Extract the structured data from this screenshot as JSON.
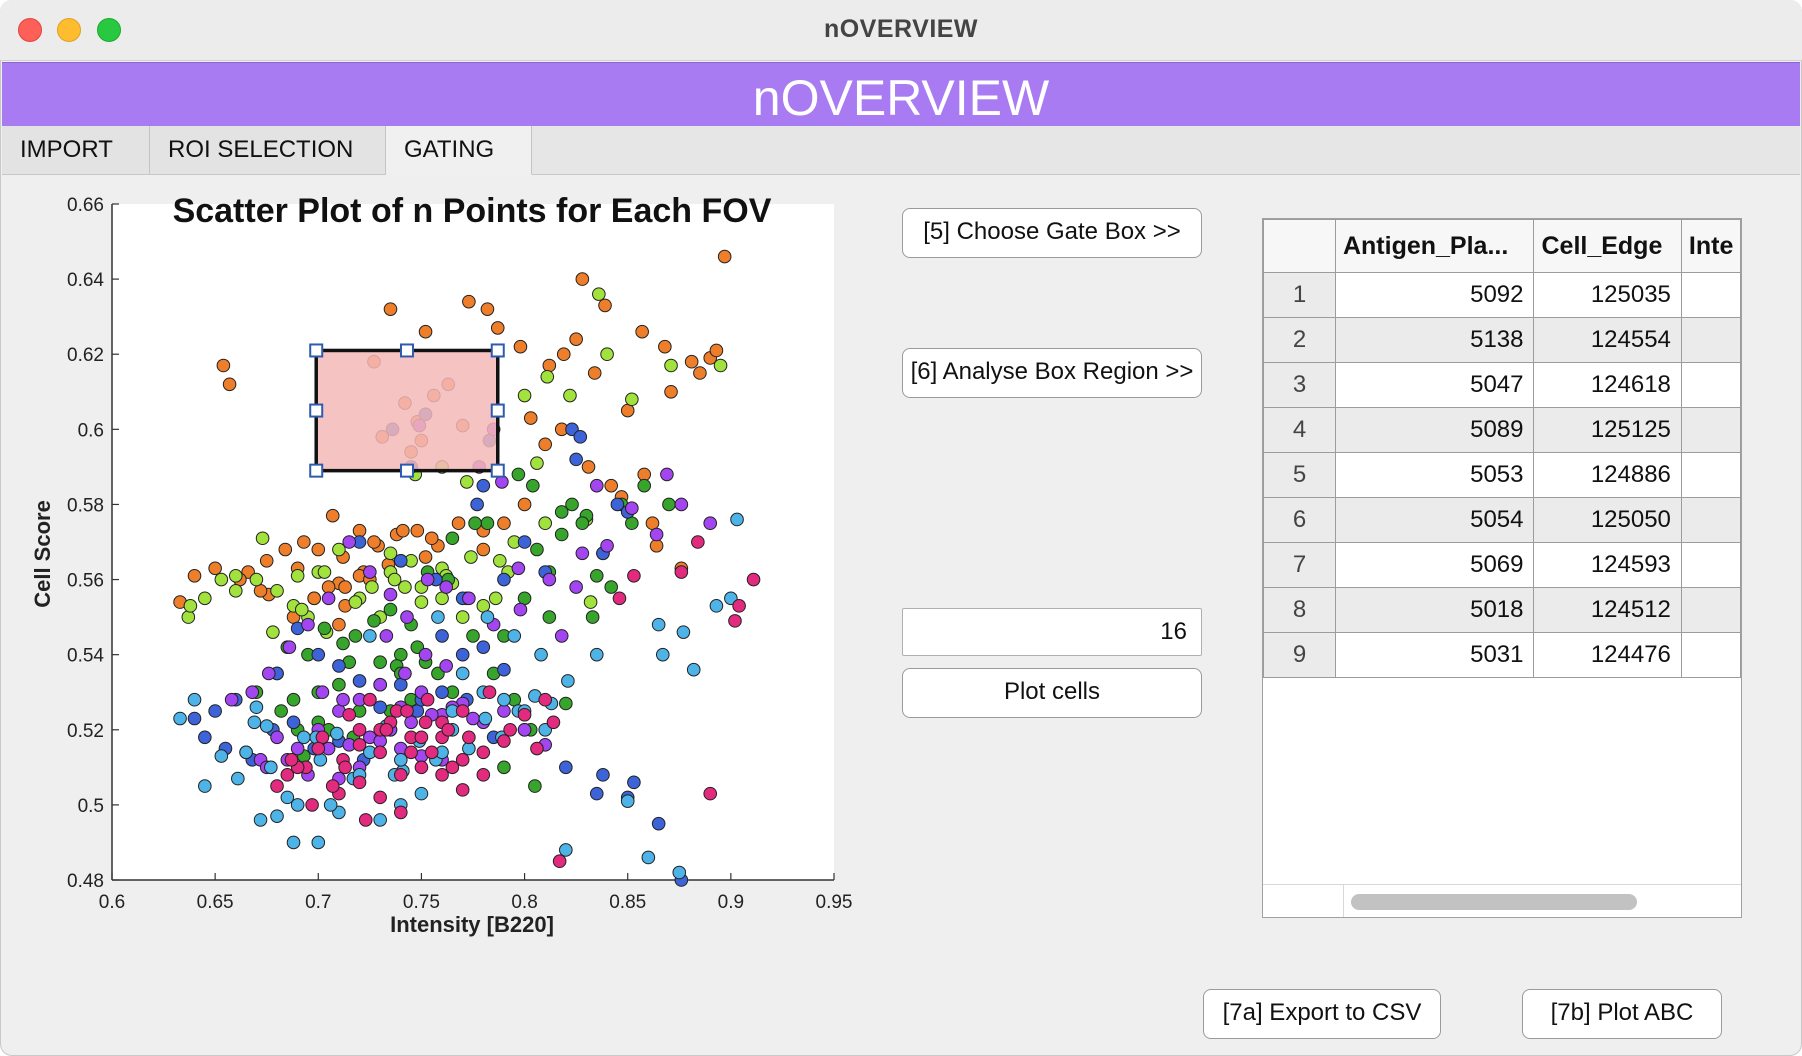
{
  "window": {
    "title": "nOVERVIEW"
  },
  "banner": {
    "title": "nOVERVIEW",
    "color": "#a97bf2"
  },
  "tabs": [
    {
      "label": "IMPORT",
      "active": false
    },
    {
      "label": "ROI SELECTION",
      "active": false
    },
    {
      "label": "GATING",
      "active": true
    }
  ],
  "buttons": {
    "choose_gate": "[5] Choose Gate Box >>",
    "analyse_box": "[6] Analyse Box Region >>",
    "plot_cells": "Plot cells",
    "export_csv": "[7a] Export to CSV",
    "plot_abc": "[7b] Plot ABC"
  },
  "n_points_field": {
    "value": "16"
  },
  "table": {
    "columns": [
      "",
      "Antigen_Pla...",
      "Cell_Edge",
      "Inte"
    ],
    "rows": [
      [
        "1",
        "5092",
        "125035"
      ],
      [
        "2",
        "5138",
        "124554"
      ],
      [
        "3",
        "5047",
        "124618"
      ],
      [
        "4",
        "5089",
        "125125"
      ],
      [
        "5",
        "5053",
        "124886"
      ],
      [
        "6",
        "5054",
        "125050"
      ],
      [
        "7",
        "5069",
        "124593"
      ],
      [
        "8",
        "5018",
        "124512"
      ],
      [
        "9",
        "5031",
        "124476"
      ]
    ]
  },
  "chart_data": {
    "type": "scatter",
    "title": "Scatter Plot of n Points for Each FOV",
    "xlabel": "Intensity [B220]",
    "ylabel": "Cell Score",
    "xlim": [
      0.6,
      0.95
    ],
    "ylim": [
      0.48,
      0.66
    ],
    "xticks": [
      "0.6",
      "0.65",
      "0.7",
      "0.75",
      "0.8",
      "0.85",
      "0.9",
      "0.95"
    ],
    "yticks": [
      "0.48",
      "0.5",
      "0.52",
      "0.54",
      "0.56",
      "0.58",
      "0.6",
      "0.62",
      "0.64",
      "0.66"
    ],
    "grid": false,
    "legend": "none",
    "gate_box": {
      "x0": 0.699,
      "x1": 0.787,
      "y0": 0.589,
      "y1": 0.621,
      "color": "#f4b8b8"
    },
    "series": [
      {
        "color": "#ee7e2a",
        "x": [
          0.654,
          0.657,
          0.735,
          0.752,
          0.773,
          0.782,
          0.787,
          0.798,
          0.828,
          0.839,
          0.85,
          0.857,
          0.868,
          0.871,
          0.881,
          0.885,
          0.89,
          0.893,
          0.897,
          0.812,
          0.819,
          0.825,
          0.834,
          0.803,
          0.748,
          0.742,
          0.763,
          0.756,
          0.727,
          0.745,
          0.731,
          0.75,
          0.77,
          0.707,
          0.72,
          0.78,
          0.693,
          0.684,
          0.675,
          0.666,
          0.7,
          0.712,
          0.738,
          0.758,
          0.768,
          0.71,
          0.698,
          0.688,
          0.676,
          0.705,
          0.722,
          0.734,
          0.752,
          0.662,
          0.672,
          0.69,
          0.713,
          0.729,
          0.741,
          0.755,
          0.78,
          0.79,
          0.842,
          0.858,
          0.862,
          0.831,
          0.847,
          0.81,
          0.818,
          0.864,
          0.876,
          0.8,
          0.65,
          0.64,
          0.633,
          0.72,
          0.727,
          0.74,
          0.748,
          0.71,
          0.698,
          0.713,
          0.725
        ],
        "y": [
          0.617,
          0.612,
          0.632,
          0.626,
          0.634,
          0.632,
          0.627,
          0.622,
          0.64,
          0.633,
          0.605,
          0.626,
          0.622,
          0.61,
          0.618,
          0.615,
          0.619,
          0.621,
          0.646,
          0.617,
          0.62,
          0.624,
          0.615,
          0.603,
          0.602,
          0.607,
          0.612,
          0.609,
          0.618,
          0.594,
          0.598,
          0.597,
          0.601,
          0.577,
          0.573,
          0.573,
          0.57,
          0.568,
          0.565,
          0.562,
          0.568,
          0.566,
          0.572,
          0.569,
          0.575,
          0.559,
          0.555,
          0.55,
          0.556,
          0.558,
          0.562,
          0.564,
          0.566,
          0.56,
          0.557,
          0.563,
          0.553,
          0.569,
          0.573,
          0.571,
          0.568,
          0.575,
          0.585,
          0.588,
          0.575,
          0.59,
          0.582,
          0.596,
          0.6,
          0.569,
          0.563,
          0.58,
          0.563,
          0.561,
          0.554,
          0.561,
          0.57,
          0.565,
          0.573,
          0.548,
          0.555,
          0.558,
          0.56
        ]
      },
      {
        "color": "#a2e23c",
        "x": [
          0.836,
          0.84,
          0.852,
          0.871,
          0.895,
          0.822,
          0.811,
          0.8,
          0.806,
          0.76,
          0.772,
          0.747,
          0.735,
          0.745,
          0.76,
          0.735,
          0.742,
          0.75,
          0.765,
          0.788,
          0.795,
          0.81,
          0.83,
          0.838,
          0.792,
          0.78,
          0.77,
          0.76,
          0.7,
          0.69,
          0.67,
          0.66,
          0.653,
          0.68,
          0.688,
          0.695,
          0.703,
          0.71,
          0.72,
          0.73,
          0.66,
          0.673,
          0.645,
          0.637,
          0.638,
          0.678,
          0.692,
          0.704,
          0.718,
          0.726,
          0.737,
          0.75,
          0.762,
          0.774,
          0.786,
          0.832
        ],
        "y": [
          0.636,
          0.62,
          0.608,
          0.617,
          0.617,
          0.609,
          0.614,
          0.609,
          0.591,
          0.59,
          0.586,
          0.588,
          0.567,
          0.565,
          0.563,
          0.562,
          0.558,
          0.554,
          0.559,
          0.565,
          0.57,
          0.575,
          0.576,
          0.567,
          0.562,
          0.553,
          0.55,
          0.555,
          0.562,
          0.561,
          0.56,
          0.561,
          0.56,
          0.557,
          0.553,
          0.55,
          0.562,
          0.568,
          0.555,
          0.55,
          0.557,
          0.571,
          0.555,
          0.55,
          0.553,
          0.546,
          0.552,
          0.546,
          0.554,
          0.558,
          0.56,
          0.558,
          0.561,
          0.566,
          0.555,
          0.554
        ]
      },
      {
        "color": "#37a42b",
        "x": [
          0.87,
          0.858,
          0.847,
          0.83,
          0.818,
          0.804,
          0.797,
          0.782,
          0.776,
          0.765,
          0.806,
          0.812,
          0.818,
          0.823,
          0.828,
          0.835,
          0.842,
          0.852,
          0.833,
          0.812,
          0.8,
          0.79,
          0.772,
          0.763,
          0.753,
          0.745,
          0.735,
          0.727,
          0.718,
          0.712,
          0.703,
          0.695,
          0.685,
          0.67,
          0.68,
          0.688,
          0.7,
          0.71,
          0.72,
          0.73,
          0.74,
          0.752,
          0.765,
          0.775,
          0.785,
          0.795,
          0.803,
          0.682,
          0.69,
          0.7,
          0.738,
          0.748,
          0.758,
          0.725,
          0.73,
          0.735,
          0.74,
          0.745,
          0.715,
          0.705,
          0.693,
          0.717,
          0.79,
          0.805,
          0.82
        ],
        "y": [
          0.58,
          0.585,
          0.58,
          0.577,
          0.578,
          0.585,
          0.588,
          0.575,
          0.575,
          0.571,
          0.568,
          0.562,
          0.572,
          0.58,
          0.575,
          0.561,
          0.558,
          0.575,
          0.55,
          0.55,
          0.555,
          0.545,
          0.555,
          0.56,
          0.562,
          0.548,
          0.552,
          0.549,
          0.545,
          0.543,
          0.547,
          0.54,
          0.542,
          0.53,
          0.535,
          0.528,
          0.53,
          0.532,
          0.525,
          0.538,
          0.54,
          0.538,
          0.53,
          0.545,
          0.535,
          0.528,
          0.52,
          0.525,
          0.52,
          0.522,
          0.537,
          0.542,
          0.535,
          0.528,
          0.532,
          0.525,
          0.535,
          0.528,
          0.538,
          0.52,
          0.513,
          0.518,
          0.51,
          0.505,
          0.527
        ]
      },
      {
        "color": "#3c63d8",
        "x": [
          0.745,
          0.736,
          0.752,
          0.783,
          0.78,
          0.777,
          0.823,
          0.825,
          0.827,
          0.845,
          0.85,
          0.838,
          0.81,
          0.8,
          0.79,
          0.77,
          0.757,
          0.74,
          0.72,
          0.7,
          0.69,
          0.68,
          0.66,
          0.65,
          0.64,
          0.645,
          0.655,
          0.668,
          0.678,
          0.688,
          0.698,
          0.71,
          0.722,
          0.735,
          0.748,
          0.76,
          0.772,
          0.785,
          0.8,
          0.82,
          0.835,
          0.85,
          0.865,
          0.876,
          0.71,
          0.72,
          0.73,
          0.74,
          0.75,
          0.76,
          0.77,
          0.78,
          0.79,
          0.838,
          0.853
        ],
        "y": [
          0.59,
          0.6,
          0.604,
          0.597,
          0.585,
          0.58,
          0.6,
          0.592,
          0.598,
          0.58,
          0.578,
          0.567,
          0.562,
          0.57,
          0.56,
          0.555,
          0.56,
          0.565,
          0.57,
          0.54,
          0.547,
          0.535,
          0.528,
          0.525,
          0.523,
          0.518,
          0.515,
          0.512,
          0.52,
          0.522,
          0.515,
          0.517,
          0.512,
          0.52,
          0.525,
          0.53,
          0.528,
          0.518,
          0.52,
          0.51,
          0.503,
          0.502,
          0.495,
          0.48,
          0.537,
          0.533,
          0.526,
          0.532,
          0.528,
          0.545,
          0.54,
          0.542,
          0.536,
          0.508,
          0.506
        ]
      },
      {
        "color": "#a346f2",
        "x": [
          0.785,
          0.778,
          0.749,
          0.789,
          0.835,
          0.869,
          0.852,
          0.89,
          0.864,
          0.84,
          0.876,
          0.828,
          0.797,
          0.812,
          0.825,
          0.818,
          0.798,
          0.785,
          0.773,
          0.762,
          0.753,
          0.743,
          0.735,
          0.725,
          0.715,
          0.705,
          0.695,
          0.686,
          0.676,
          0.668,
          0.658,
          0.71,
          0.72,
          0.73,
          0.74,
          0.75,
          0.76,
          0.77,
          0.78,
          0.79,
          0.8,
          0.81,
          0.7,
          0.69,
          0.68,
          0.672,
          0.665,
          0.675,
          0.685,
          0.695,
          0.705,
          0.715,
          0.725,
          0.735,
          0.745,
          0.755,
          0.765,
          0.775,
          0.73,
          0.74,
          0.75,
          0.72,
          0.71,
          0.76,
          0.702,
          0.712,
          0.742,
          0.752,
          0.762,
          0.733
        ],
        "y": [
          0.6,
          0.59,
          0.601,
          0.586,
          0.585,
          0.588,
          0.579,
          0.575,
          0.572,
          0.569,
          0.58,
          0.567,
          0.563,
          0.56,
          0.558,
          0.545,
          0.552,
          0.548,
          0.555,
          0.558,
          0.56,
          0.55,
          0.556,
          0.562,
          0.57,
          0.555,
          0.548,
          0.542,
          0.535,
          0.53,
          0.528,
          0.525,
          0.528,
          0.532,
          0.526,
          0.53,
          0.524,
          0.527,
          0.522,
          0.525,
          0.52,
          0.516,
          0.52,
          0.515,
          0.518,
          0.512,
          0.514,
          0.51,
          0.512,
          0.508,
          0.515,
          0.516,
          0.518,
          0.52,
          0.522,
          0.524,
          0.526,
          0.523,
          0.517,
          0.515,
          0.513,
          0.51,
          0.507,
          0.512,
          0.53,
          0.528,
          0.535,
          0.54,
          0.537,
          0.545
        ]
      },
      {
        "color": "#4eb3e6",
        "x": [
          0.633,
          0.645,
          0.653,
          0.661,
          0.669,
          0.677,
          0.685,
          0.693,
          0.701,
          0.709,
          0.717,
          0.725,
          0.733,
          0.741,
          0.749,
          0.757,
          0.765,
          0.773,
          0.781,
          0.789,
          0.797,
          0.805,
          0.813,
          0.821,
          0.665,
          0.67,
          0.675,
          0.68,
          0.69,
          0.7,
          0.71,
          0.72,
          0.73,
          0.74,
          0.75,
          0.76,
          0.77,
          0.78,
          0.79,
          0.8,
          0.81,
          0.64,
          0.672,
          0.688,
          0.699,
          0.706,
          0.74,
          0.82,
          0.86,
          0.875,
          0.85,
          0.865,
          0.877,
          0.893,
          0.9,
          0.903,
          0.882,
          0.867,
          0.835,
          0.808,
          0.795,
          0.782,
          0.765,
          0.758,
          0.737,
          0.725
        ],
        "y": [
          0.523,
          0.505,
          0.513,
          0.507,
          0.522,
          0.51,
          0.502,
          0.518,
          0.512,
          0.519,
          0.507,
          0.514,
          0.521,
          0.509,
          0.517,
          0.512,
          0.52,
          0.515,
          0.523,
          0.518,
          0.525,
          0.529,
          0.527,
          0.533,
          0.514,
          0.526,
          0.521,
          0.497,
          0.5,
          0.49,
          0.498,
          0.508,
          0.496,
          0.512,
          0.503,
          0.514,
          0.535,
          0.53,
          0.528,
          0.525,
          0.52,
          0.528,
          0.496,
          0.49,
          0.518,
          0.5,
          0.5,
          0.488,
          0.486,
          0.482,
          0.501,
          0.548,
          0.546,
          0.553,
          0.555,
          0.576,
          0.536,
          0.54,
          0.54,
          0.54,
          0.545,
          0.55,
          0.525,
          0.55,
          0.508,
          0.545
        ]
      },
      {
        "color": "#e22a7e",
        "x": [
          0.817,
          0.89,
          0.911,
          0.904,
          0.902,
          0.884,
          0.876,
          0.853,
          0.846,
          0.81,
          0.793,
          0.783,
          0.77,
          0.76,
          0.752,
          0.745,
          0.738,
          0.73,
          0.72,
          0.712,
          0.702,
          0.694,
          0.685,
          0.715,
          0.725,
          0.735,
          0.745,
          0.755,
          0.765,
          0.71,
          0.72,
          0.73,
          0.74,
          0.75,
          0.76,
          0.77,
          0.78,
          0.79,
          0.8,
          0.7,
          0.69,
          0.68,
          0.72,
          0.73,
          0.74,
          0.75,
          0.76,
          0.77,
          0.78,
          0.733,
          0.743,
          0.753,
          0.763,
          0.773,
          0.707,
          0.697,
          0.687,
          0.723,
          0.713,
          0.806,
          0.814
        ],
        "y": [
          0.485,
          0.503,
          0.56,
          0.553,
          0.549,
          0.57,
          0.562,
          0.561,
          0.555,
          0.528,
          0.52,
          0.53,
          0.525,
          0.518,
          0.522,
          0.514,
          0.525,
          0.52,
          0.516,
          0.512,
          0.518,
          0.51,
          0.508,
          0.524,
          0.528,
          0.522,
          0.518,
          0.514,
          0.51,
          0.503,
          0.506,
          0.502,
          0.498,
          0.51,
          0.508,
          0.504,
          0.514,
          0.517,
          0.524,
          0.515,
          0.51,
          0.505,
          0.52,
          0.514,
          0.508,
          0.518,
          0.522,
          0.512,
          0.508,
          0.52,
          0.525,
          0.528,
          0.52,
          0.518,
          0.505,
          0.5,
          0.512,
          0.496,
          0.51,
          0.515,
          0.522
        ]
      }
    ]
  }
}
